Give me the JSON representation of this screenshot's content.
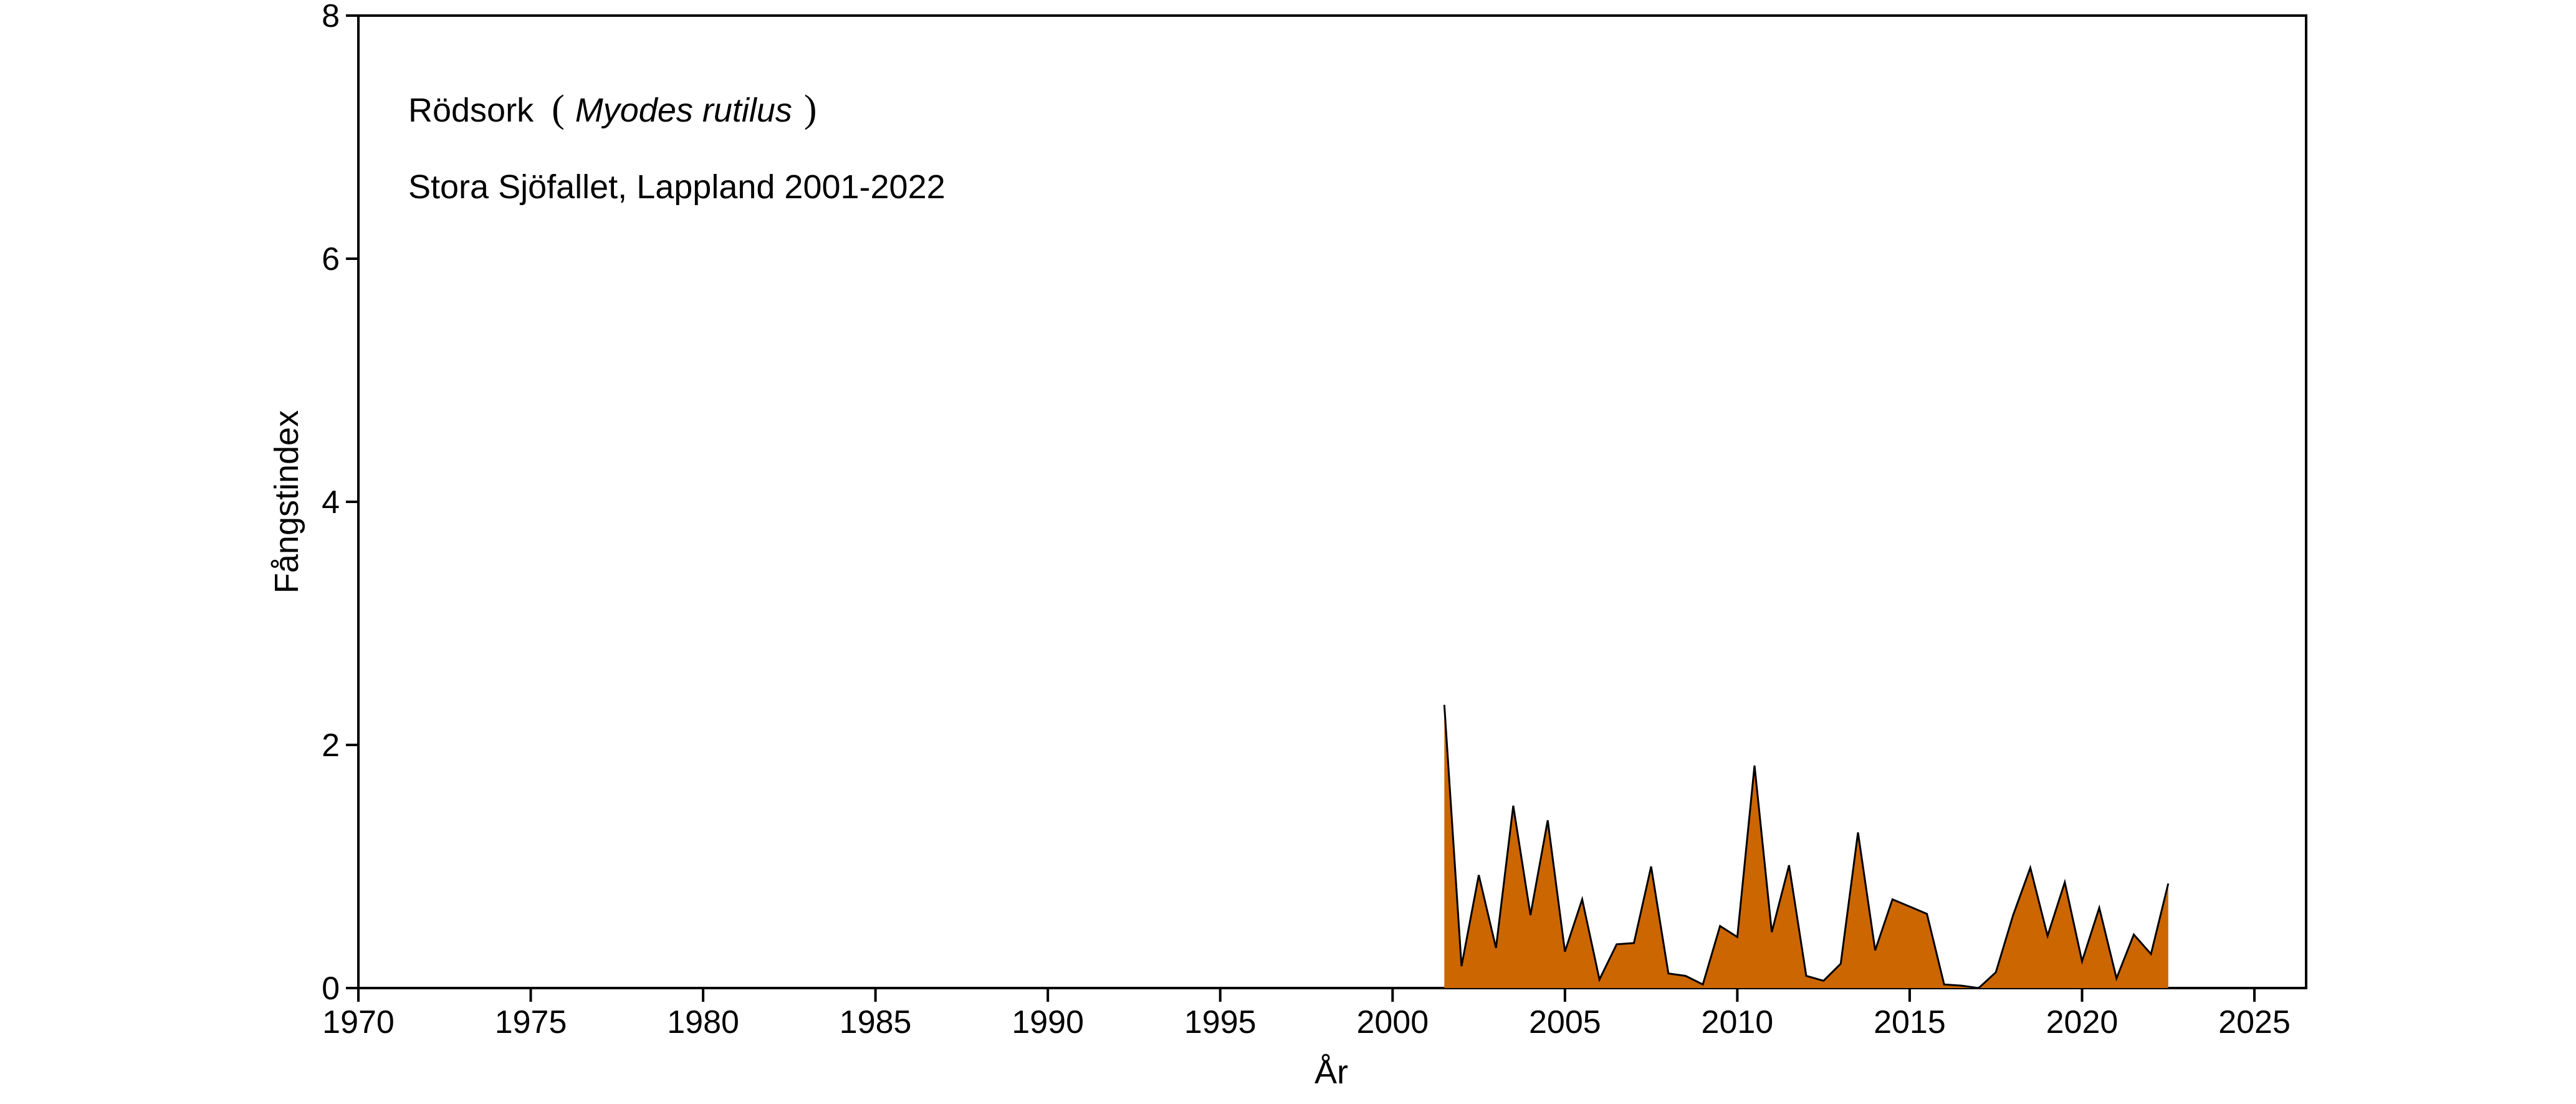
{
  "chart_data": {
    "type": "area",
    "xlabel": "År",
    "ylabel": "Fångstindex",
    "xlim": [
      1970,
      2026.5
    ],
    "ylim": [
      0,
      8
    ],
    "xticks": [
      1970,
      1975,
      1980,
      1985,
      1990,
      1995,
      2000,
      2005,
      2010,
      2015,
      2020,
      2025
    ],
    "yticks": [
      0,
      2,
      4,
      6,
      8
    ],
    "grid": false,
    "fill_color": "#CC6600",
    "line_color": "#000000",
    "annotations": {
      "species_common": "Rödsork",
      "paren_open": "(",
      "species_latin": "Myodes rutilus",
      "paren_close": ")",
      "location": "Stora Sjöfallet, Lappland 2001-2022"
    },
    "series": [
      {
        "x": [
          2001.5,
          2002,
          2002.5,
          2003,
          2003.5,
          2004,
          2004.5,
          2005,
          2005.5,
          2006,
          2006.5,
          2007,
          2007.5,
          2008,
          2008.5,
          2009,
          2009.5,
          2010,
          2010.5,
          2011,
          2011.5,
          2012,
          2012.5,
          2013,
          2013.5,
          2014,
          2014.5,
          2015,
          2015.5,
          2016,
          2016.5,
          2017,
          2017.5,
          2018,
          2018.5,
          2019,
          2019.5,
          2020,
          2020.5,
          2021,
          2021.5,
          2022,
          2022.5
        ],
        "values": [
          2.33,
          0.18,
          0.93,
          0.33,
          1.5,
          0.6,
          1.38,
          0.3,
          0.73,
          0.07,
          0.36,
          0.37,
          1.0,
          0.12,
          0.1,
          0.03,
          0.51,
          0.42,
          1.83,
          0.46,
          1.01,
          0.1,
          0.06,
          0.2,
          1.28,
          0.31,
          0.73,
          0.67,
          0.61,
          0.03,
          0.02,
          0.0,
          0.13,
          0.6,
          0.99,
          0.43,
          0.87,
          0.22,
          0.66,
          0.08,
          0.44,
          0.28,
          0.86
        ]
      }
    ]
  }
}
